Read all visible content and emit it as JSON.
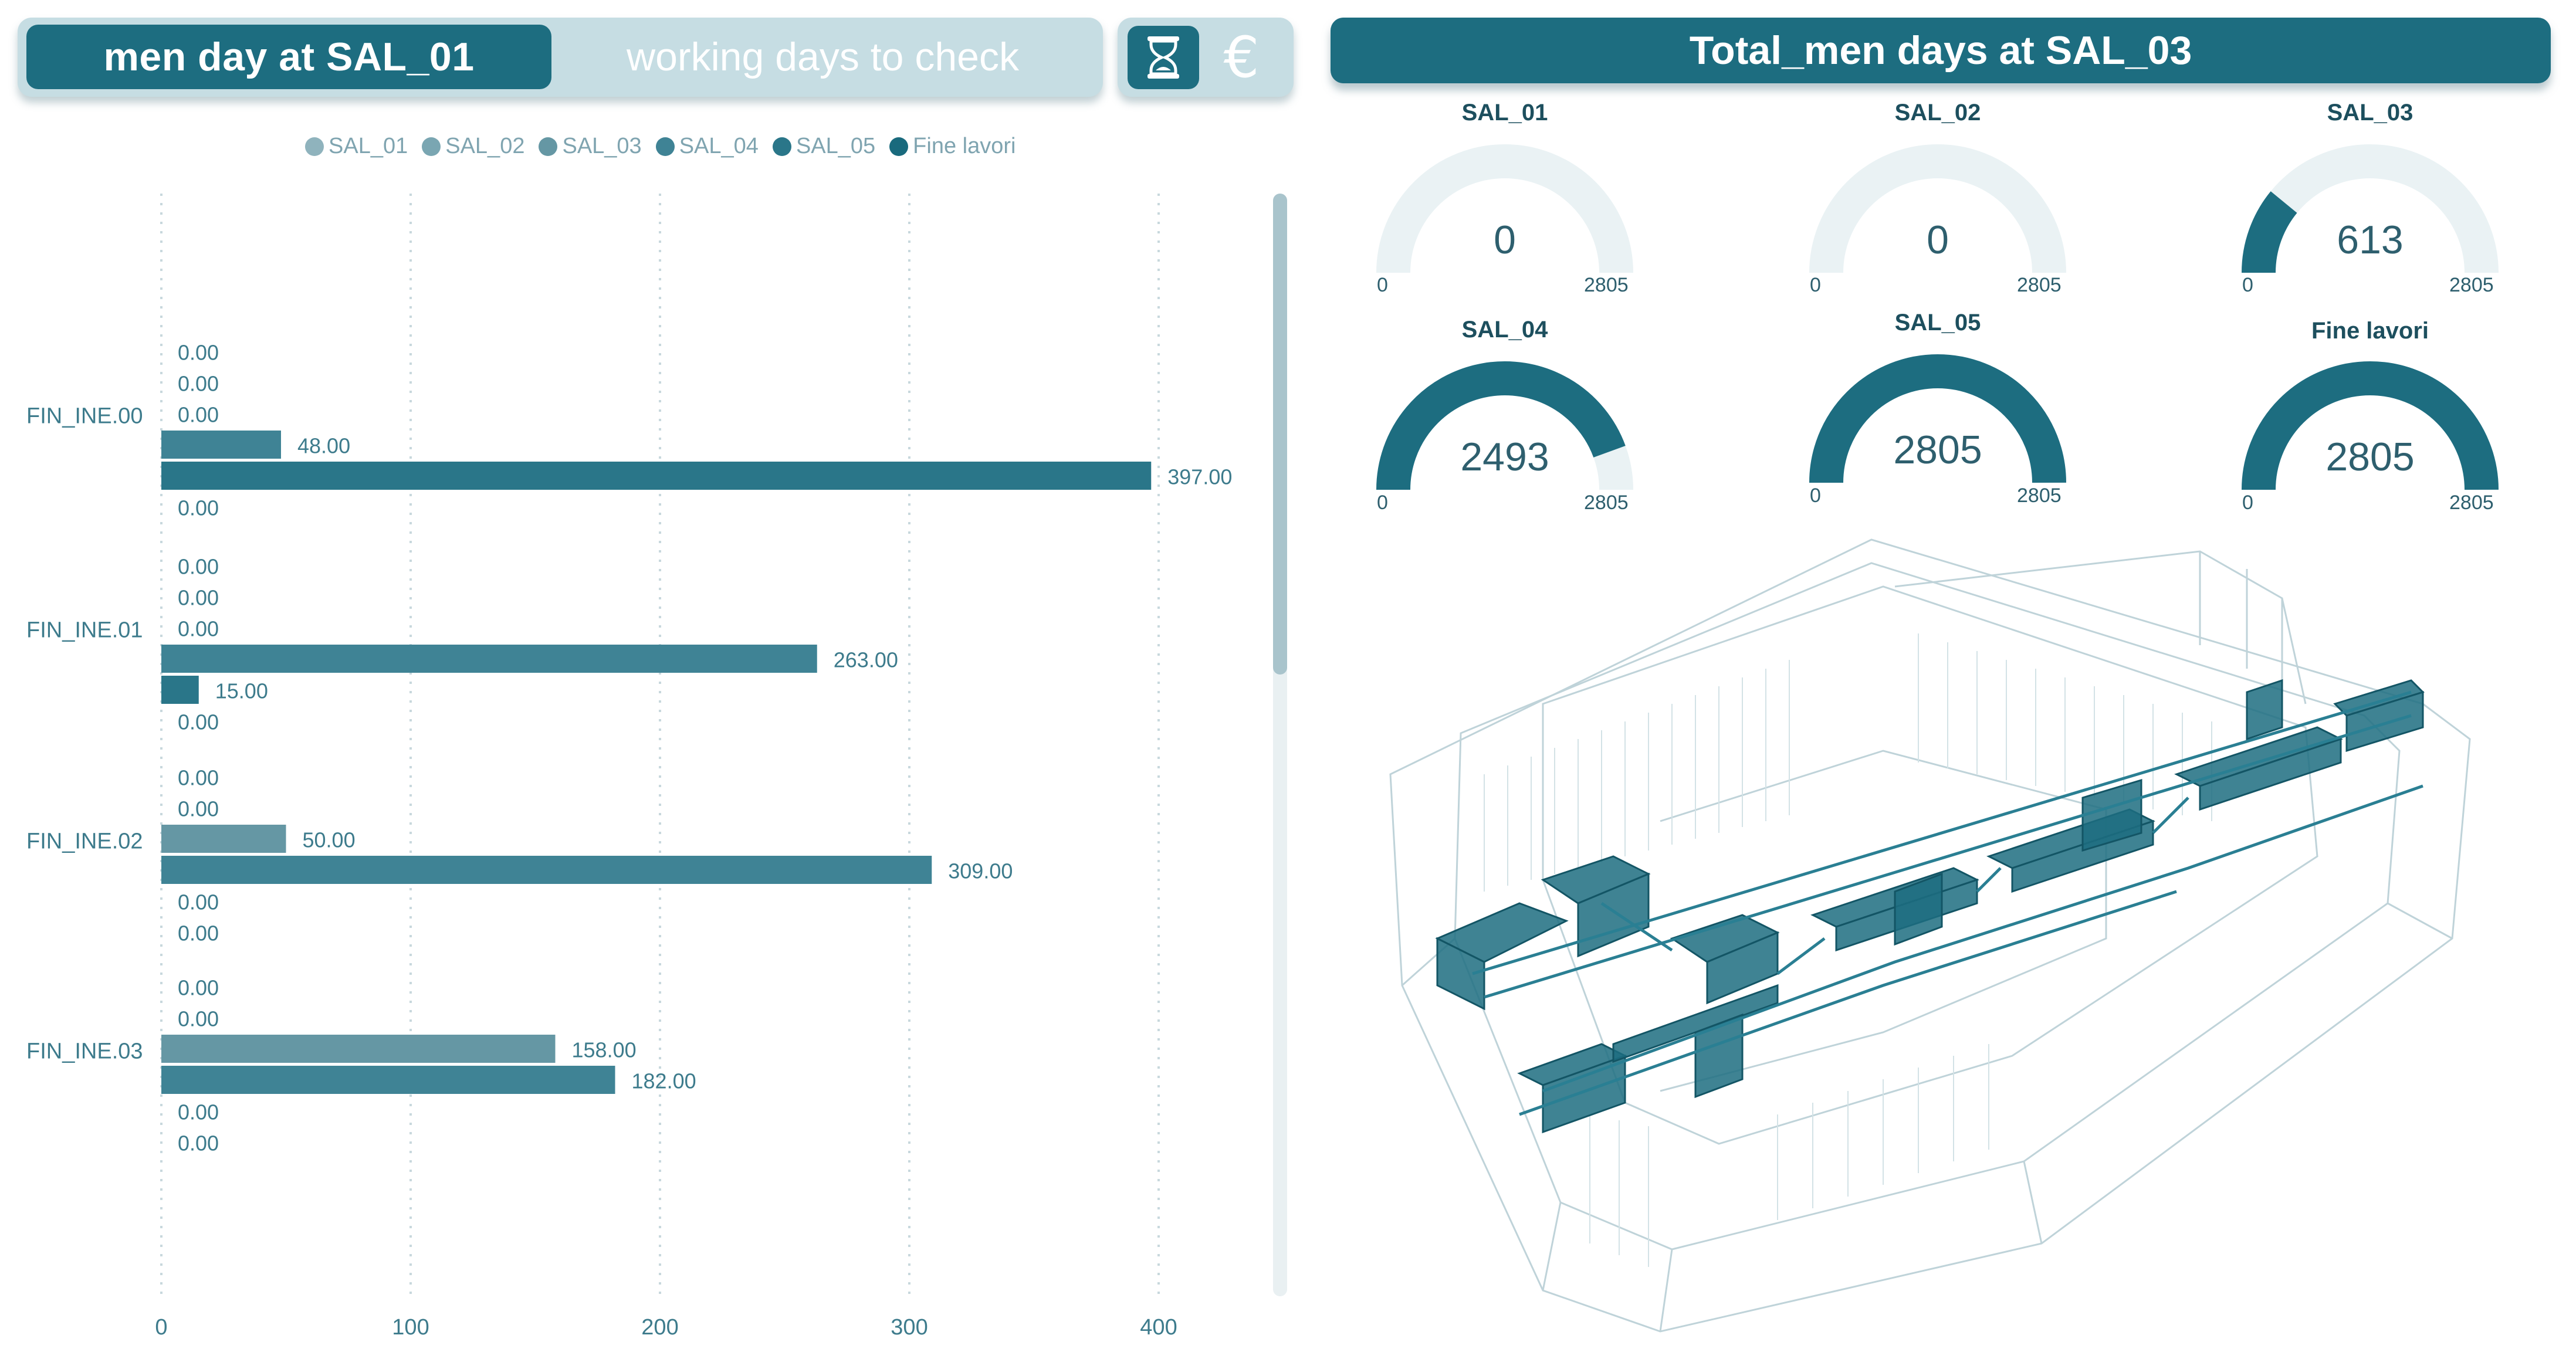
{
  "header_left": {
    "active_tab": "men day at SAL_01",
    "inactive_tab": "working days to check"
  },
  "icons": {
    "time": "hourglass-icon",
    "cost": "€"
  },
  "legend": [
    {
      "label": "SAL_01",
      "color": "#8fb3bd"
    },
    {
      "label": "SAL_02",
      "color": "#7aa6b2"
    },
    {
      "label": "SAL_03",
      "color": "#6597a4"
    },
    {
      "label": "SAL_04",
      "color": "#3f8395"
    },
    {
      "label": "SAL_05",
      "color": "#2a7689"
    },
    {
      "label": "Fine lavori",
      "color": "#196a7d"
    }
  ],
  "chart_data": {
    "type": "bar",
    "orientation": "horizontal",
    "categories": [
      "FIN_INE.00",
      "FIN_INE.01",
      "FIN_INE.02",
      "FIN_INE.03"
    ],
    "series": [
      {
        "name": "SAL_01",
        "values": [
          0,
          0,
          0,
          0
        ]
      },
      {
        "name": "SAL_02",
        "values": [
          0,
          0,
          0,
          0
        ]
      },
      {
        "name": "SAL_03",
        "values": [
          0,
          0,
          50,
          158
        ]
      },
      {
        "name": "SAL_04",
        "values": [
          48,
          263,
          309,
          182
        ]
      },
      {
        "name": "SAL_05",
        "values": [
          397,
          15,
          0,
          0
        ]
      },
      {
        "name": "Fine lavori",
        "values": [
          0,
          0,
          0,
          0
        ]
      }
    ],
    "data_labels": [
      [
        "0.00",
        "0.00",
        "0.00",
        "48.00",
        "397.00",
        "0.00"
      ],
      [
        "0.00",
        "0.00",
        "0.00",
        "263.00",
        "15.00",
        "0.00"
      ],
      [
        "0.00",
        "0.00",
        "50.00",
        "309.00",
        "0.00",
        "0.00"
      ],
      [
        "0.00",
        "0.00",
        "158.00",
        "182.00",
        "0.00",
        "0.00"
      ]
    ],
    "x_ticks": [
      "0",
      "100",
      "200",
      "300",
      "400"
    ],
    "xlim": [
      0,
      400
    ],
    "title": "",
    "xlabel": "",
    "ylabel": ""
  },
  "header_right": {
    "title": "Total_men days at SAL_03"
  },
  "gauges": [
    {
      "title": "SAL_01",
      "value": 0,
      "display": "0",
      "min": "0",
      "max": "2805",
      "max_value": 2805
    },
    {
      "title": "SAL_02",
      "value": 0,
      "display": "0",
      "min": "0",
      "max": "2805",
      "max_value": 2805
    },
    {
      "title": "SAL_03",
      "value": 613,
      "display": "613",
      "min": "0",
      "max": "2805",
      "max_value": 2805
    },
    {
      "title": "SAL_04",
      "value": 2493,
      "display": "2493",
      "min": "0",
      "max": "2805",
      "max_value": 2805
    },
    {
      "title": "SAL_05",
      "value": 2805,
      "display": "2805",
      "min": "0",
      "max": "2805",
      "max_value": 2805
    },
    {
      "title": "Fine lavori",
      "value": 2805,
      "display": "2805",
      "min": "0",
      "max": "2805",
      "max_value": 2805
    }
  ],
  "colors": {
    "accent": "#1d6d80",
    "gauge_track": "#eaf2f4",
    "header_light": "#c6dde3"
  }
}
